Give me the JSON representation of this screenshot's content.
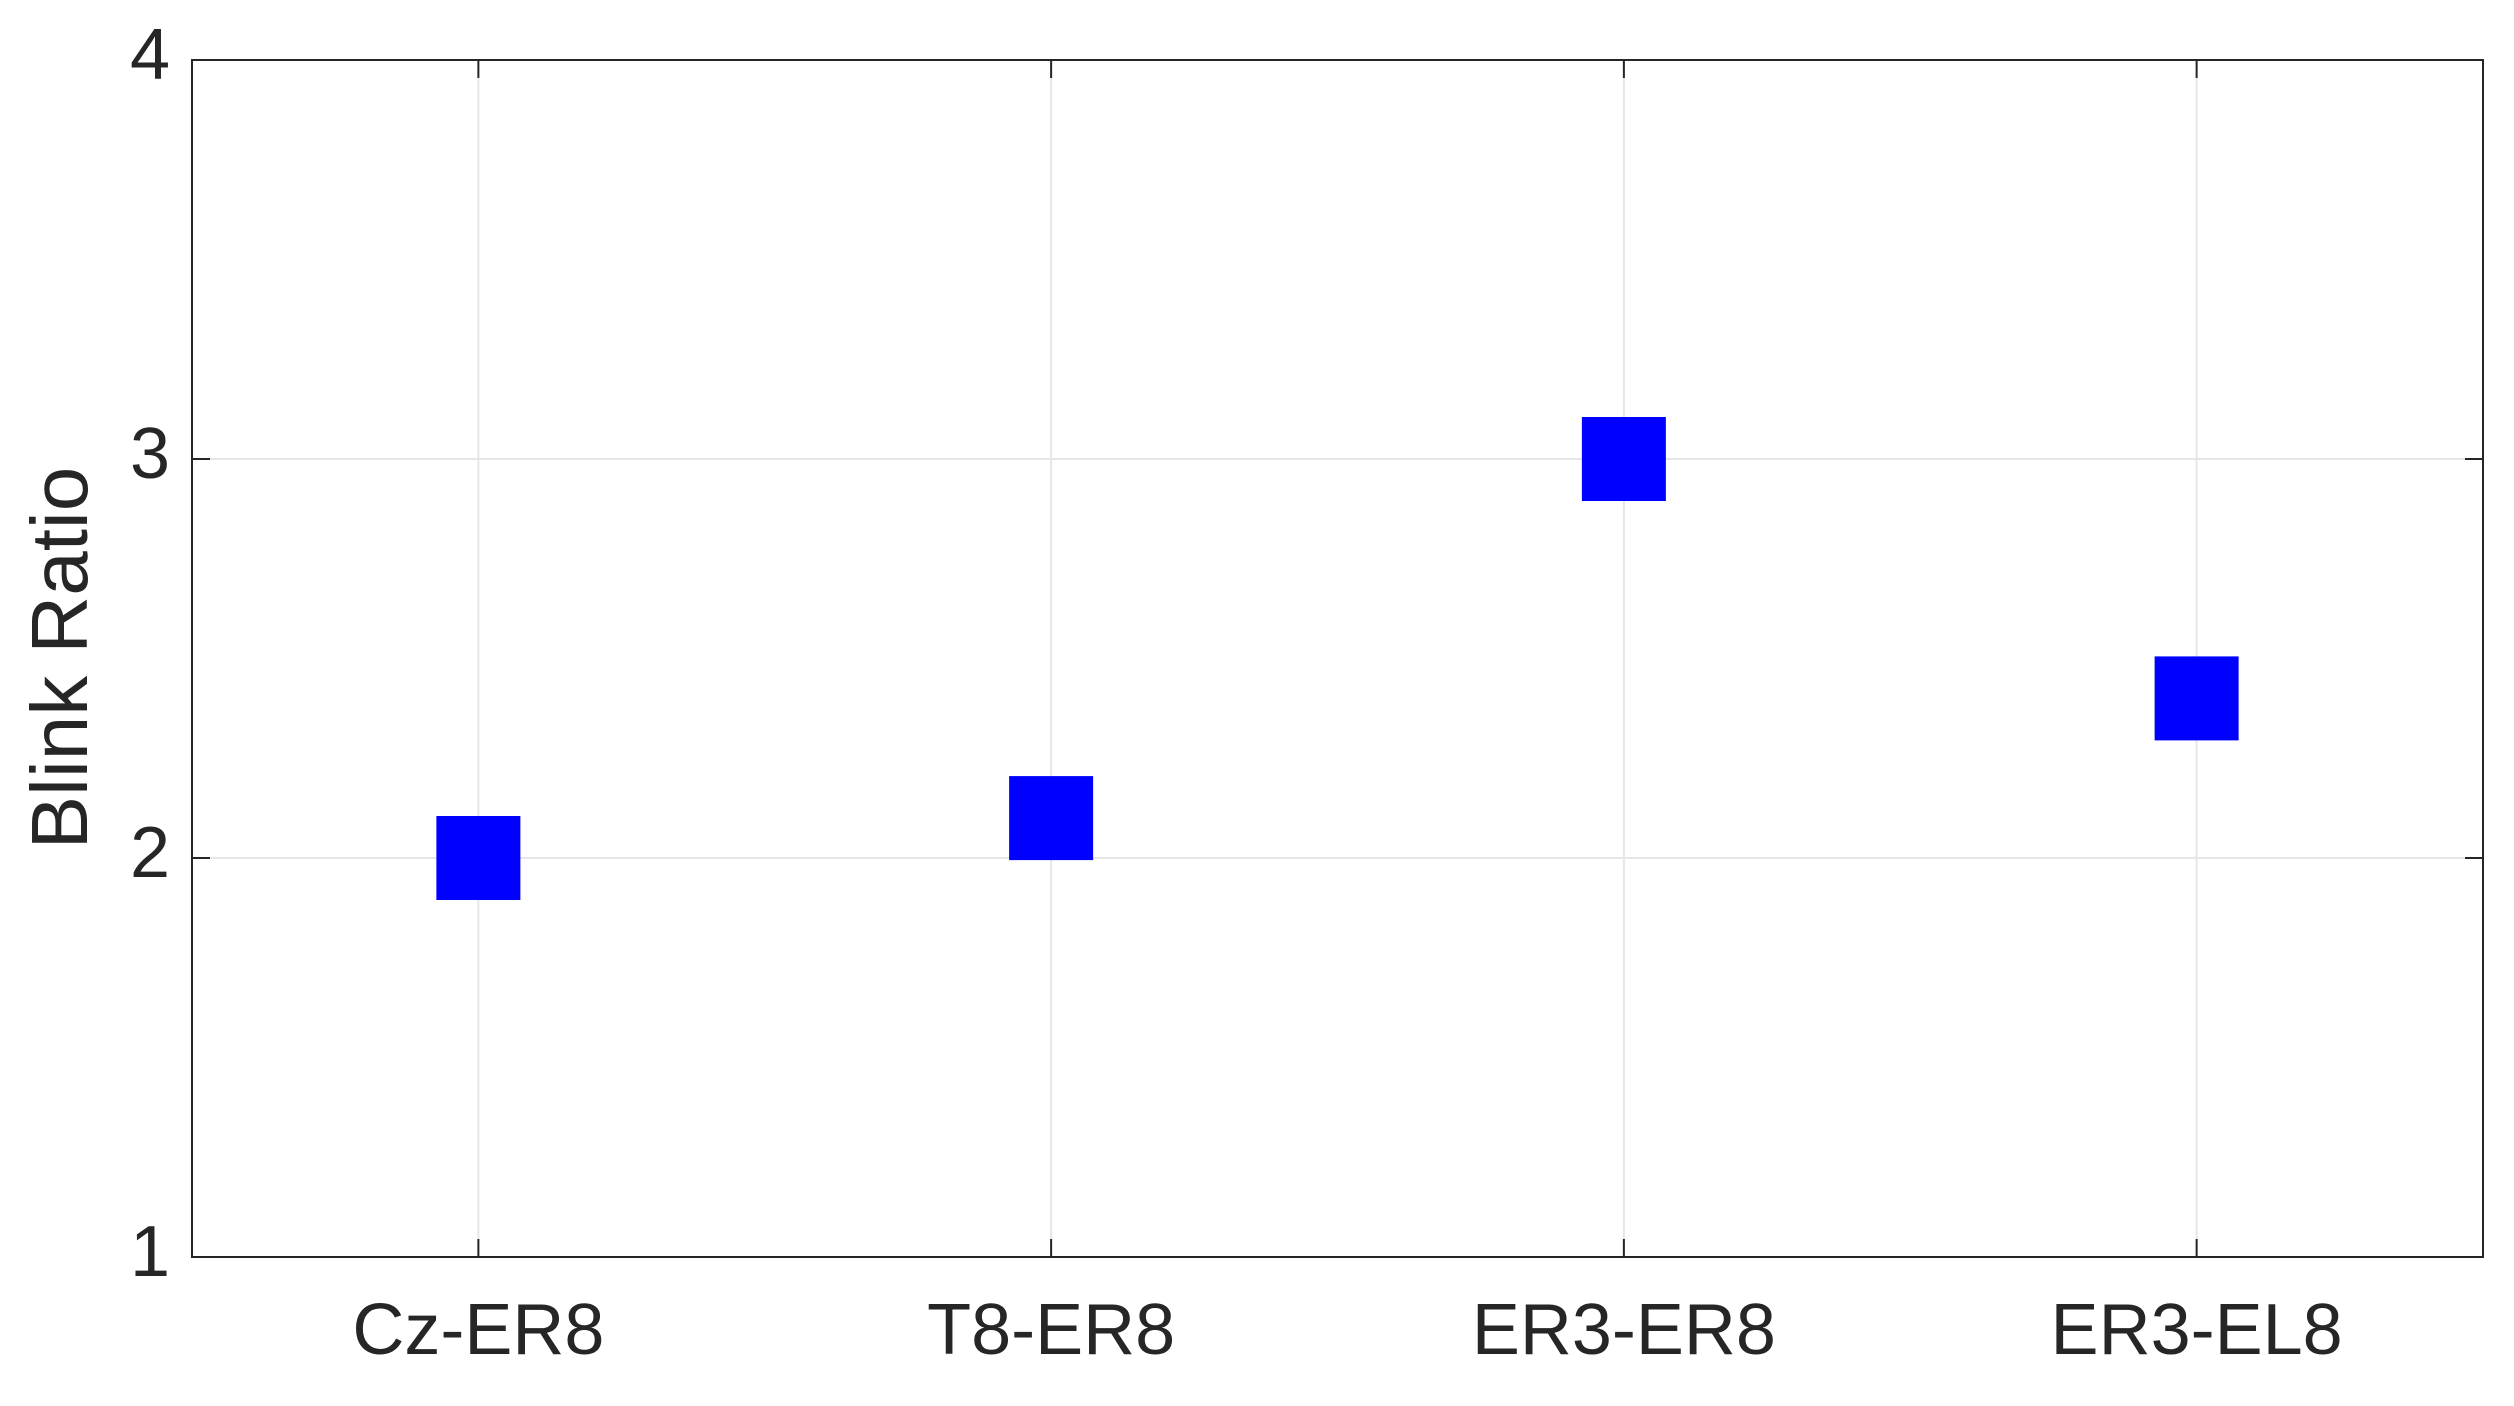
{
  "chart_data": {
    "type": "scatter",
    "y_label": "Blink Ratio",
    "categories": [
      "Cz-ER8",
      "T8-ER8",
      "ER3-ER8",
      "ER3-EL8"
    ],
    "values": [
      2.0,
      2.1,
      3.0,
      2.4
    ],
    "color": "#0000ff",
    "marker": "square",
    "ylim": [
      1,
      4
    ],
    "yticks": [
      1,
      2,
      3,
      4
    ],
    "grid": true
  }
}
